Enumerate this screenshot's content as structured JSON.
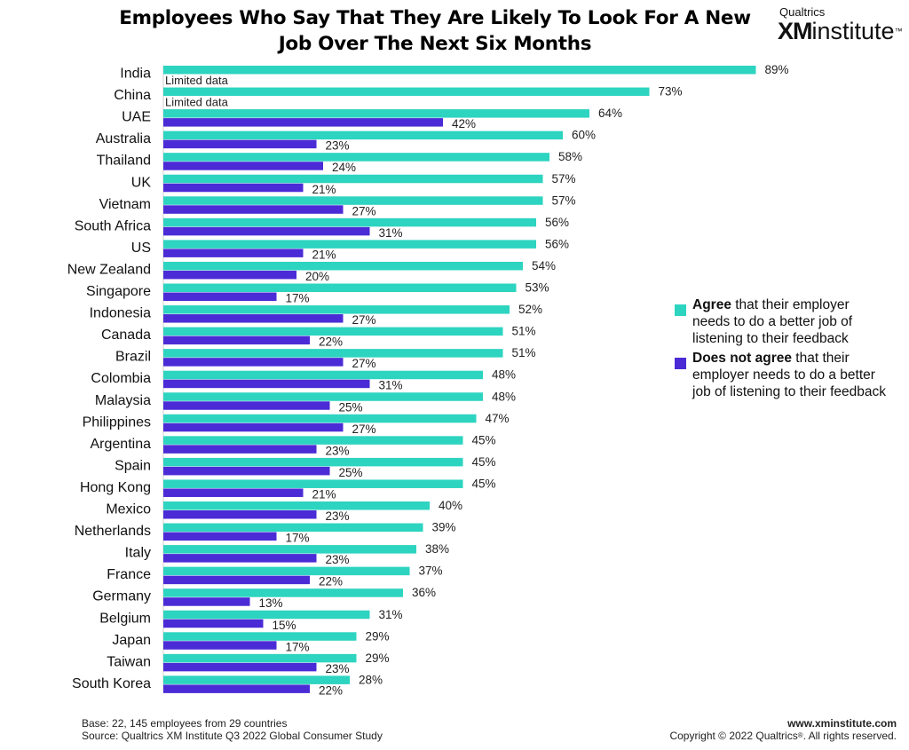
{
  "header": {
    "title": "Employees Who Say That They Are Likely To Look For A New Job Over The Next Six Months",
    "logo_brand": "Qualtrics",
    "logo_xm": "XM",
    "logo_institute": "institute",
    "logo_tm": "™"
  },
  "chart_data": {
    "type": "bar",
    "orientation": "horizontal",
    "categories": [
      "India",
      "China",
      "UAE",
      "Australia",
      "Thailand",
      "UK",
      "Vietnam",
      "South Africa",
      "US",
      "New Zealand",
      "Singapore",
      "Indonesia",
      "Canada",
      "Brazil",
      "Colombia",
      "Malaysia",
      "Philippines",
      "Argentina",
      "Spain",
      "Hong Kong",
      "Mexico",
      "Netherlands",
      "Italy",
      "France",
      "Germany",
      "Belgium",
      "Japan",
      "Taiwan",
      "South Korea"
    ],
    "series": [
      {
        "name": "Agree that their employer needs to do a better job of listening to their feedback",
        "color": "#2dd4c0",
        "values": [
          89,
          73,
          64,
          60,
          58,
          57,
          57,
          56,
          56,
          54,
          53,
          52,
          51,
          51,
          48,
          48,
          47,
          45,
          45,
          45,
          40,
          39,
          38,
          37,
          36,
          31,
          29,
          29,
          28
        ]
      },
      {
        "name": "Does not agree that their employer needs to do a better job of listening to their feedback",
        "color": "#4b2bd6",
        "values": [
          null,
          null,
          42,
          23,
          24,
          21,
          27,
          31,
          21,
          20,
          17,
          27,
          22,
          27,
          31,
          25,
          27,
          23,
          25,
          21,
          23,
          17,
          23,
          22,
          13,
          15,
          17,
          23,
          22
        ]
      }
    ],
    "value_suffix": "%",
    "missing_label": "Limited data",
    "xlim": [
      0,
      100
    ],
    "legend_position": "right"
  },
  "legend": {
    "agree_strong": "Agree",
    "agree_rest": " that their employer needs to do a better job of listening to their feedback",
    "disagree_strong": "Does not agree",
    "disagree_rest": " that their employer needs to do a better job of listening to their feedback"
  },
  "footer": {
    "base": "Base: 22, 145 employees from 29 countries",
    "source": "Source: Qualtrics XM Institute Q3 2022 Global Consumer Study",
    "url": "www.xminstitute.com",
    "copyright": "Copyright © 2022 Qualtrics",
    "copyright_reg": "®",
    "copyright_tail": ". All rights reserved."
  }
}
